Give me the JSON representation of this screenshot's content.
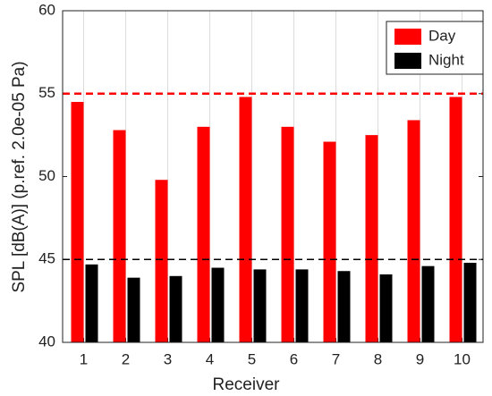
{
  "chart_data": {
    "type": "bar",
    "x_label": "Receiver",
    "y_label": "SPL [dB(A)] (p.ref. 2.0e-05 Pa)",
    "categories": [
      "1",
      "2",
      "3",
      "4",
      "5",
      "6",
      "7",
      "8",
      "9",
      "10"
    ],
    "series": [
      {
        "name": "Day",
        "color": "#ff0000",
        "values": [
          54.5,
          52.8,
          49.8,
          53.0,
          54.8,
          53.0,
          52.1,
          52.5,
          53.4,
          54.8
        ]
      },
      {
        "name": "Night",
        "color": "#000000",
        "values": [
          44.7,
          43.9,
          44.0,
          44.5,
          44.4,
          44.4,
          44.3,
          44.1,
          44.6,
          44.8
        ]
      }
    ],
    "reference_lines": [
      {
        "value": 55,
        "color": "#ff0000"
      },
      {
        "value": 45,
        "color": "#000000"
      }
    ],
    "ylim": [
      40,
      60
    ],
    "yticks": [
      40,
      45,
      50,
      55,
      60
    ],
    "grid": "x",
    "legend": "upper right"
  }
}
